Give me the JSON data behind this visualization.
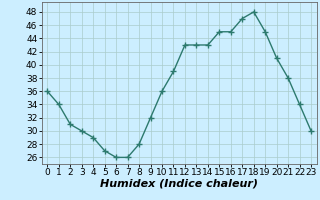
{
  "x": [
    0,
    1,
    2,
    3,
    4,
    5,
    6,
    7,
    8,
    9,
    10,
    11,
    12,
    13,
    14,
    15,
    16,
    17,
    18,
    19,
    20,
    21,
    22,
    23
  ],
  "y": [
    36,
    34,
    31,
    30,
    29,
    27,
    26,
    26,
    28,
    32,
    36,
    39,
    43,
    43,
    43,
    45,
    45,
    47,
    48,
    45,
    41,
    38,
    34,
    30
  ],
  "line_color": "#2d7a6e",
  "marker": "+",
  "marker_size": 4,
  "marker_linewidth": 1.0,
  "line_width": 1.0,
  "bg_color": "#cceeff",
  "grid_color": "#aacccc",
  "xlabel": "Humidex (Indice chaleur)",
  "xlabel_fontsize": 8,
  "xlabel_fontstyle": "italic",
  "yticks": [
    26,
    28,
    30,
    32,
    34,
    36,
    38,
    40,
    42,
    44,
    46,
    48
  ],
  "xticks": [
    0,
    1,
    2,
    3,
    4,
    5,
    6,
    7,
    8,
    9,
    10,
    11,
    12,
    13,
    14,
    15,
    16,
    17,
    18,
    19,
    20,
    21,
    22,
    23
  ],
  "ylim": [
    25,
    49.5
  ],
  "xlim": [
    -0.5,
    23.5
  ],
  "tick_fontsize": 6.5
}
